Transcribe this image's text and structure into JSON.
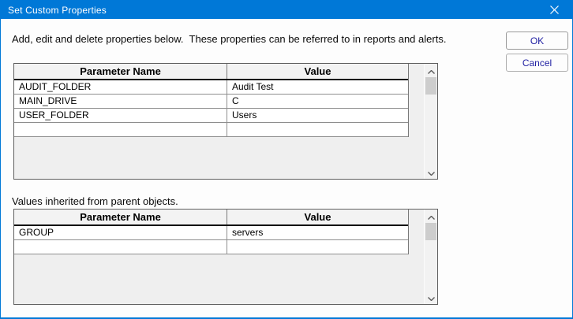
{
  "window": {
    "title": "Set Custom Properties"
  },
  "colors": {
    "accent": "#0078d7",
    "button_text": "#2121a3",
    "titlebar_text": "#ffffff"
  },
  "instruction": "Add, edit and delete properties below.  These properties can be referred to in reports and alerts.",
  "buttons": {
    "ok": "OK",
    "cancel": "Cancel"
  },
  "inherited_label": "Values inherited from parent objects.",
  "icons": {
    "close": "close-x",
    "scroll_up": "chevron-up",
    "scroll_down": "chevron-down"
  },
  "tables": [
    {
      "name": "custom-properties",
      "columns": [
        "Parameter Name",
        "Value"
      ],
      "rows": [
        [
          "AUDIT_FOLDER",
          "Audit Test"
        ],
        [
          "MAIN_DRIVE",
          "C"
        ],
        [
          "USER_FOLDER",
          "Users"
        ],
        [
          "",
          ""
        ]
      ]
    },
    {
      "name": "inherited-properties",
      "columns": [
        "Parameter Name",
        "Value"
      ],
      "rows": [
        [
          "GROUP",
          "servers"
        ],
        [
          "",
          ""
        ]
      ]
    }
  ]
}
